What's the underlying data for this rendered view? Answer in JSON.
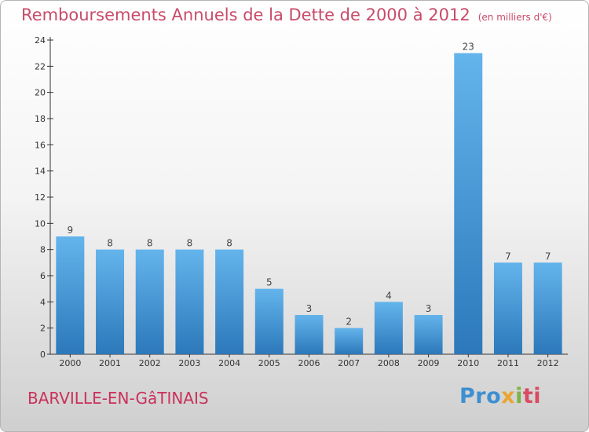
{
  "header": {
    "title": "Remboursements Annuels de la Dette de 2000 à 2012",
    "unit": "(en milliers d'€)"
  },
  "footer": {
    "commune": "BARVILLE-EN-GâTINAIS",
    "logo": [
      "Pro",
      "x",
      "i",
      "ti"
    ]
  },
  "colors": {
    "bar_top": "#64b4ec",
    "bar_bottom": "#2c78ba",
    "title": "#c94a6a",
    "commune": "#c9315b"
  },
  "chart_data": {
    "type": "bar",
    "title": "Remboursements Annuels de la Dette de 2000 à 2012",
    "ylabel": "",
    "xlabel": "",
    "categories": [
      "2000",
      "2001",
      "2002",
      "2003",
      "2004",
      "2005",
      "2006",
      "2007",
      "2008",
      "2009",
      "2010",
      "2011",
      "2012"
    ],
    "values": [
      9,
      8,
      8,
      8,
      8,
      5,
      3,
      2,
      4,
      3,
      23,
      7,
      7
    ],
    "ylim": [
      0,
      24
    ],
    "yticks": [
      0,
      2,
      4,
      6,
      8,
      10,
      12,
      14,
      16,
      18,
      20,
      22,
      24
    ],
    "grid": false,
    "data_labels": true
  }
}
